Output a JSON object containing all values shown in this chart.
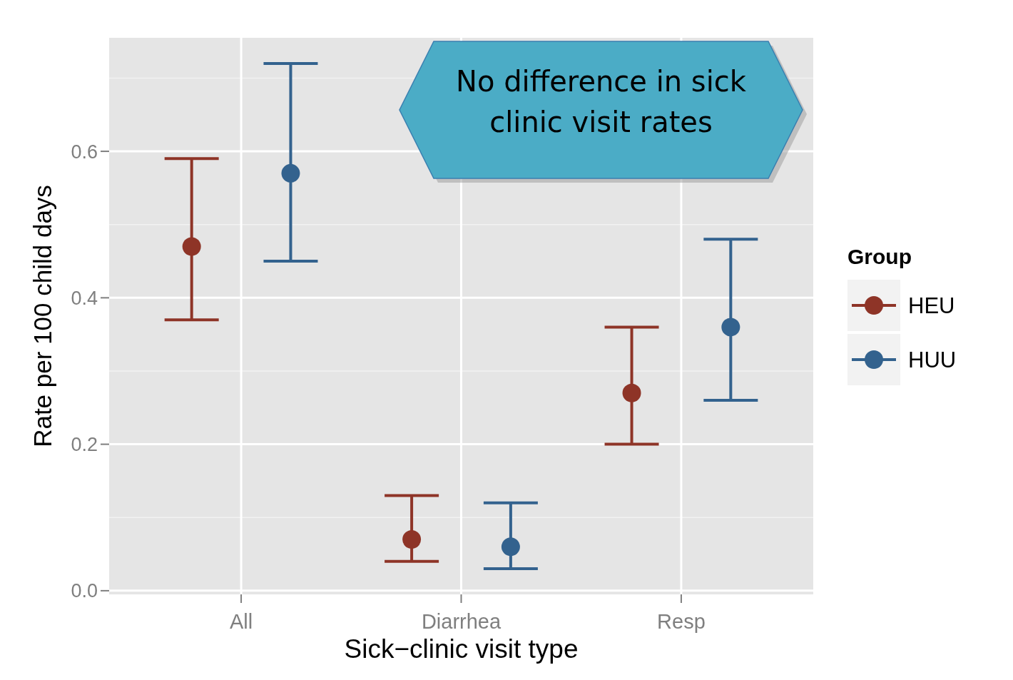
{
  "chart_data": {
    "type": "scatter",
    "xlabel": "Sick−clinic visit type",
    "ylabel": "Rate per 100 child days",
    "legend_title": "Group",
    "legend": "right",
    "grid": true,
    "marker": "circle",
    "categories": [
      "All",
      "Diarrhea",
      "Resp"
    ],
    "ylim": [
      -0.005,
      0.755
    ],
    "yticks": [
      {
        "value": 0,
        "label": "0.0"
      },
      {
        "value": 0.2,
        "label": "0.2"
      },
      {
        "value": 0.4,
        "label": "0.4"
      },
      {
        "value": 0.6,
        "label": "0.6"
      }
    ],
    "series": [
      {
        "name": "HEU",
        "color": "#8e3427",
        "values": [
          0.47,
          0.07,
          0.27
        ],
        "errors": [
          [
            0.37,
            0.59
          ],
          [
            0.04,
            0.13
          ],
          [
            0.2,
            0.36
          ]
        ]
      },
      {
        "name": "HUU",
        "color": "#33628e",
        "values": [
          0.57,
          0.06,
          0.36
        ],
        "errors": [
          [
            0.45,
            0.72
          ],
          [
            0.03,
            0.12
          ],
          [
            0.26,
            0.48
          ]
        ]
      }
    ],
    "annotations": [
      "No difference in sick clinic visit rates"
    ]
  }
}
